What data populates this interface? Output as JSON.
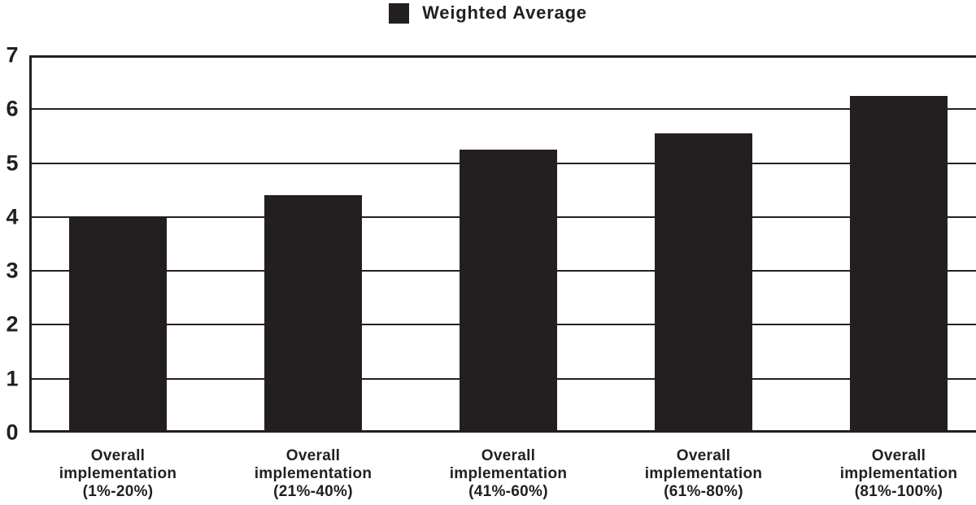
{
  "legend": {
    "label": "Weighted Average"
  },
  "colors": {
    "bar": "#231f20",
    "grid": "#231f20",
    "text": "#231f20",
    "background": "#ffffff"
  },
  "y_axis": {
    "tick_labels": [
      "0",
      "1",
      "2",
      "3",
      "4",
      "5",
      "6",
      "7"
    ]
  },
  "chart_data": {
    "type": "bar",
    "title": "",
    "categories": [
      "Overall implementation (1%-20%)",
      "Overall implementation (21%-40%)",
      "Overall implementation (41%-60%)",
      "Overall implementation (61%-80%)",
      "Overall implementation (81%-100%)"
    ],
    "category_lines": [
      [
        "Overall",
        "implementation",
        "(1%-20%)"
      ],
      [
        "Overall",
        "implementation",
        "(21%-40%)"
      ],
      [
        "Overall",
        "implementation",
        "(41%-60%)"
      ],
      [
        "Overall",
        "implementation",
        "(61%-80%)"
      ],
      [
        "Overall",
        "implementation",
        "(81%-100%)"
      ]
    ],
    "series": [
      {
        "name": "Weighted Average",
        "values": [
          4.0,
          4.4,
          5.25,
          5.55,
          6.25
        ]
      }
    ],
    "xlabel": "",
    "ylabel": "",
    "ylim": [
      0,
      7
    ],
    "yticks": [
      0,
      1,
      2,
      3,
      4,
      5,
      6,
      7
    ],
    "grid": true,
    "legend_position": "top-center"
  }
}
